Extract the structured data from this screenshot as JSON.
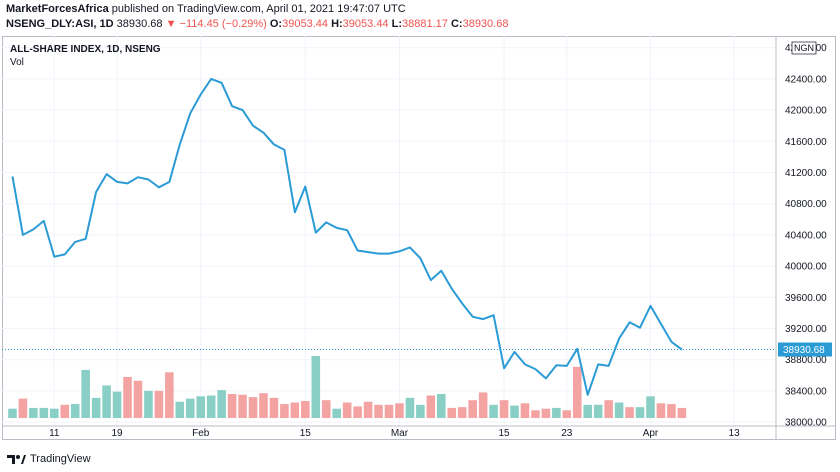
{
  "header": {
    "author": "MarketForcesAfrica",
    "published": "published on TradingView.com, April 01, 2021 19:47:07 UTC",
    "symbol": "NSENG_DLY:ASI, 1D",
    "last": "38930.68",
    "change": "▼ −114.45 (−0.29%)",
    "o_label": "O:",
    "o_value": "39053.44",
    "h_label": "H:",
    "h_value": "39053.44",
    "l_label": "L:",
    "l_value": "38881.17",
    "c_label": "C:",
    "c_value": "38930.68"
  },
  "footer": {
    "brand": "TradingView"
  },
  "colors": {
    "line": "#2b9bd6",
    "vol_up": "#89cfc5",
    "vol_down": "#f4a3a3",
    "price_badge": "#2b9bd6",
    "grid": "#f0f3fa",
    "border": "#b8bcc6"
  },
  "chart_data": {
    "type": "line",
    "title": "ALL-SHARE INDEX, 1D, NSENG",
    "indicator": "Vol",
    "currency": "NGN",
    "last_price_label": "38930.68",
    "y_ticks": [
      "42800.00",
      "42400.00",
      "42000.00",
      "41600.00",
      "41200.00",
      "40800.00",
      "40400.00",
      "40000.00",
      "39600.00",
      "39200.00",
      "38800.00",
      "38400.00",
      "38000.00"
    ],
    "ylim": [
      37950,
      42950
    ],
    "x_ticks": [
      "11",
      "19",
      "Feb",
      "15",
      "Mar",
      "15",
      "23",
      "Apr",
      "13"
    ],
    "x_tick_positions": [
      4,
      10,
      18,
      28,
      37,
      47,
      53,
      61,
      69
    ],
    "x_range": [
      -1,
      73
    ],
    "series": [
      {
        "values": [
          41150,
          40400,
          40470,
          40580,
          40120,
          40150,
          40310,
          40350,
          40950,
          41180,
          41080,
          41060,
          41140,
          41110,
          41010,
          41080,
          41560,
          41960,
          42200,
          42400,
          42350,
          42050,
          42000,
          41800,
          41710,
          41560,
          41490,
          40690,
          41020,
          40430,
          40560,
          40490,
          40460,
          40200,
          40180,
          40160,
          40160,
          40190,
          40240,
          40100,
          39820,
          39940,
          39710,
          39520,
          39350,
          39320,
          39370,
          38690,
          38900,
          38740,
          38680,
          38560,
          38730,
          38720,
          38940,
          38350,
          38740,
          38720,
          39070,
          39280,
          39210,
          39490,
          39260,
          39030,
          38930
        ]
      }
    ],
    "volume": [
      {
        "v": 12,
        "up": true
      },
      {
        "v": 25,
        "up": false
      },
      {
        "v": 13,
        "up": true
      },
      {
        "v": 13,
        "up": true
      },
      {
        "v": 12,
        "up": true
      },
      {
        "v": 17,
        "up": false
      },
      {
        "v": 18,
        "up": true
      },
      {
        "v": 62,
        "up": true
      },
      {
        "v": 26,
        "up": true
      },
      {
        "v": 42,
        "up": true
      },
      {
        "v": 34,
        "up": true
      },
      {
        "v": 53,
        "up": false
      },
      {
        "v": 48,
        "up": false
      },
      {
        "v": 35,
        "up": true
      },
      {
        "v": 35,
        "up": false
      },
      {
        "v": 59,
        "up": false
      },
      {
        "v": 21,
        "up": true
      },
      {
        "v": 25,
        "up": true
      },
      {
        "v": 28,
        "up": true
      },
      {
        "v": 29,
        "up": true
      },
      {
        "v": 36,
        "up": true
      },
      {
        "v": 31,
        "up": false
      },
      {
        "v": 30,
        "up": false
      },
      {
        "v": 27,
        "up": false
      },
      {
        "v": 32,
        "up": false
      },
      {
        "v": 26,
        "up": false
      },
      {
        "v": 18,
        "up": false
      },
      {
        "v": 20,
        "up": false
      },
      {
        "v": 22,
        "up": false
      },
      {
        "v": 80,
        "up": true
      },
      {
        "v": 23,
        "up": false
      },
      {
        "v": 12,
        "up": true
      },
      {
        "v": 20,
        "up": false
      },
      {
        "v": 15,
        "up": false
      },
      {
        "v": 21,
        "up": false
      },
      {
        "v": 17,
        "up": false
      },
      {
        "v": 17,
        "up": false
      },
      {
        "v": 19,
        "up": false
      },
      {
        "v": 26,
        "up": true
      },
      {
        "v": 17,
        "up": true
      },
      {
        "v": 29,
        "up": false
      },
      {
        "v": 31,
        "up": true
      },
      {
        "v": 13,
        "up": false
      },
      {
        "v": 14,
        "up": false
      },
      {
        "v": 23,
        "up": false
      },
      {
        "v": 33,
        "up": false
      },
      {
        "v": 17,
        "up": true
      },
      {
        "v": 23,
        "up": false
      },
      {
        "v": 16,
        "up": true
      },
      {
        "v": 19,
        "up": false
      },
      {
        "v": 10,
        "up": false
      },
      {
        "v": 12,
        "up": false
      },
      {
        "v": 13,
        "up": true
      },
      {
        "v": 10,
        "up": false
      },
      {
        "v": 66,
        "up": false
      },
      {
        "v": 17,
        "up": true
      },
      {
        "v": 17,
        "up": true
      },
      {
        "v": 23,
        "up": false
      },
      {
        "v": 20,
        "up": true
      },
      {
        "v": 14,
        "up": false
      },
      {
        "v": 14,
        "up": true
      },
      {
        "v": 28,
        "up": true
      },
      {
        "v": 19,
        "up": false
      },
      {
        "v": 18,
        "up": false
      },
      {
        "v": 13,
        "up": false
      }
    ],
    "grid": true
  }
}
